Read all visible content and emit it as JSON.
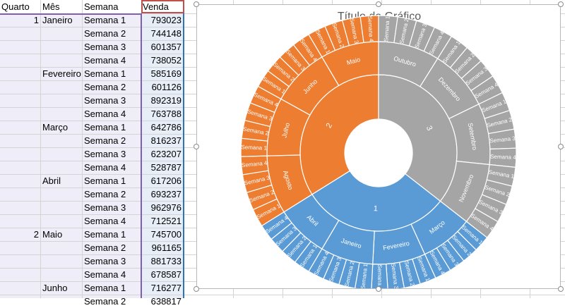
{
  "sheet": {
    "headers": {
      "a": "Quarto",
      "b": "Mês",
      "c": "Semana",
      "d": "Venda"
    },
    "rows": [
      {
        "q": "1",
        "m": "Janeiro",
        "w": "Semana 1",
        "v": "793023"
      },
      {
        "q": "",
        "m": "",
        "w": "Semana 2",
        "v": "744148"
      },
      {
        "q": "",
        "m": "",
        "w": "Semana 3",
        "v": "601357"
      },
      {
        "q": "",
        "m": "",
        "w": "Semana 4",
        "v": "738052"
      },
      {
        "q": "",
        "m": "Fevereiro",
        "w": "Semana 1",
        "v": "585169"
      },
      {
        "q": "",
        "m": "",
        "w": "Semana 2",
        "v": "601126"
      },
      {
        "q": "",
        "m": "",
        "w": "Semana 3",
        "v": "892319"
      },
      {
        "q": "",
        "m": "",
        "w": "Semana 4",
        "v": "763788"
      },
      {
        "q": "",
        "m": "Março",
        "w": "Semana 1",
        "v": "642786"
      },
      {
        "q": "",
        "m": "",
        "w": "Semana 2",
        "v": "816237"
      },
      {
        "q": "",
        "m": "",
        "w": "Semana 3",
        "v": "623207"
      },
      {
        "q": "",
        "m": "",
        "w": "Semana 4",
        "v": "528787"
      },
      {
        "q": "",
        "m": "Abril",
        "w": "Semana 1",
        "v": "617206"
      },
      {
        "q": "",
        "m": "",
        "w": "Semana 2",
        "v": "693237"
      },
      {
        "q": "",
        "m": "",
        "w": "Semana 3",
        "v": "962976"
      },
      {
        "q": "",
        "m": "",
        "w": "Semana 4",
        "v": "712521"
      },
      {
        "q": "2",
        "m": "Maio",
        "w": "Semana 1",
        "v": "745700"
      },
      {
        "q": "",
        "m": "",
        "w": "Semana 2",
        "v": "961165"
      },
      {
        "q": "",
        "m": "",
        "w": "Semana 3",
        "v": "881733"
      },
      {
        "q": "",
        "m": "",
        "w": "Semana 4",
        "v": "678587"
      },
      {
        "q": "",
        "m": "Junho",
        "w": "Semana 1",
        "v": "716277"
      },
      {
        "q": "",
        "m": "",
        "w": "Semana 2",
        "v": "638817"
      }
    ]
  },
  "chart": {
    "title": "Título do Gráfico"
  },
  "chart_data": {
    "type": "sunburst",
    "title": "Título do Gráfico",
    "colors": {
      "1": "#5b9bd5",
      "2": "#ed7d31",
      "3": "#a5a5a5"
    },
    "hierarchy": [
      {
        "name": "1",
        "months": [
          {
            "name": "Janeiro",
            "weeks": [
              "Semana 1",
              "Semana 2",
              "Semana 3",
              "Semana 4"
            ]
          },
          {
            "name": "Fevereiro",
            "weeks": [
              "Semana 1",
              "Semana 2",
              "Semana 3",
              "Semana 4"
            ]
          },
          {
            "name": "Março",
            "weeks": [
              "Semana 1",
              "Semana 2",
              "Semana 3",
              "Semana 4"
            ]
          },
          {
            "name": "Abril",
            "weeks": [
              "Semana 1",
              "Semana 2",
              "Semana 3",
              "Semana 4"
            ]
          }
        ]
      },
      {
        "name": "2",
        "months": [
          {
            "name": "Maio",
            "weeks": [
              "Semana 1",
              "Semana 2",
              "Semana 3",
              "Semana 4"
            ]
          },
          {
            "name": "Junho",
            "weeks": [
              "Semana 1",
              "Semana 2",
              "Semana 3",
              "Semana 4"
            ]
          },
          {
            "name": "Julho",
            "weeks": [
              "Semana 1",
              "Semana 2",
              "Semana 3",
              "Semana 4"
            ]
          },
          {
            "name": "Agosto",
            "weeks": [
              "Semana 1",
              "Semana 2",
              "Semana 3",
              "Semana 4"
            ]
          }
        ]
      },
      {
        "name": "3",
        "months": [
          {
            "name": "Setembro",
            "weeks": [
              "Semana 1",
              "Semana 2",
              "Semana 3",
              "Semana 4"
            ]
          },
          {
            "name": "Outubro",
            "weeks": [
              "Semana 1",
              "Semana 2",
              "Semana 3",
              "Semana 4"
            ]
          },
          {
            "name": "Novembro",
            "weeks": [
              "Semana 1",
              "Semana 2",
              "Semana 3",
              "Semana 4"
            ]
          },
          {
            "name": "Dezembro",
            "weeks": [
              "Semana 1",
              "Semana 2",
              "Semana 3",
              "Semana 4"
            ]
          }
        ]
      }
    ]
  }
}
